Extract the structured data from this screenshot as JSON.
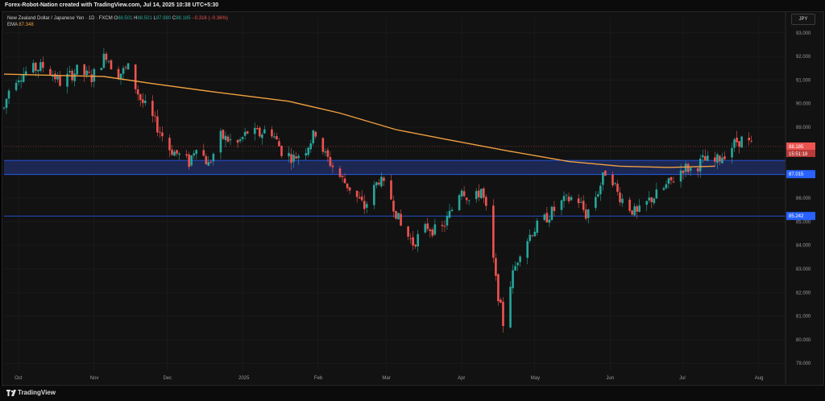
{
  "header": {
    "title": "Forex-Robot-Nation created with TradingView.com, Jul 14, 2025 10:38 UTC+5:30"
  },
  "legend": {
    "symbol": "New Zealand Dollar / Japanese Yen · 1D · FXCM",
    "open_label": "O",
    "open": "88.501",
    "high_label": "H",
    "high": "88.501",
    "low_label": "L",
    "low": "87.980",
    "close_label": "C",
    "close": "88.185",
    "change": "−0.316 (−0.36%)",
    "ema_label": "EMA",
    "ema_value": "87.348"
  },
  "currency_button": "JPY",
  "footer": {
    "brand": "TradingView"
  },
  "colors": {
    "up": "#26a69a",
    "down": "#ef5350",
    "ema": "#f0a040",
    "zone_fill": "#1e2b5e",
    "zone_line": "#2962ff",
    "background": "#121212",
    "grid": "#1f1f1f"
  },
  "chart_data": {
    "type": "candlestick",
    "ylim": [
      78.7,
      93.3
    ],
    "y_ticks": [
      "93.000",
      "92.000",
      "91.000",
      "90.000",
      "89.000",
      "88.000",
      "87.000",
      "86.000",
      "85.000",
      "84.000",
      "83.000",
      "82.000",
      "81.000",
      "80.000",
      "79.000"
    ],
    "x_ticks": [
      "Oct",
      "Nov",
      "Dec",
      "2025",
      "Feb",
      "Mar",
      "Apr",
      "May",
      "Jun",
      "Jul",
      "Aug"
    ],
    "price_labels": {
      "last": "88.185",
      "countdown": "15:51:18",
      "zone_level": "87.015",
      "support_level": "85.242"
    },
    "horizontal_levels": [
      {
        "name": "demand-zone",
        "from": 87.0,
        "to": 87.6
      },
      {
        "name": "support",
        "value": 85.242
      }
    ],
    "ema_series": [
      [
        "2024-09-25",
        91.25
      ],
      [
        "2024-10-15",
        91.2
      ],
      [
        "2024-11-05",
        91.15
      ],
      [
        "2024-11-25",
        90.85
      ],
      [
        "2024-12-20",
        90.5
      ],
      [
        "2025-01-20",
        90.1
      ],
      [
        "2025-02-10",
        89.6
      ],
      [
        "2025-03-05",
        88.9
      ],
      [
        "2025-03-25",
        88.5
      ],
      [
        "2025-04-20",
        88.0
      ],
      [
        "2025-05-15",
        87.55
      ],
      [
        "2025-06-05",
        87.35
      ],
      [
        "2025-06-25",
        87.3
      ],
      [
        "2025-07-14",
        87.35
      ]
    ],
    "price_path": [
      [
        "2024-09-25",
        89.8
      ],
      [
        "2024-09-28",
        91.0
      ],
      [
        "2024-10-05",
        91.4
      ],
      [
        "2024-10-12",
        91.6
      ],
      [
        "2024-10-18",
        90.9
      ],
      [
        "2024-10-25",
        91.4
      ],
      [
        "2024-10-31",
        91.1
      ],
      [
        "2024-11-06",
        92.1
      ],
      [
        "2024-11-10",
        91.2
      ],
      [
        "2024-11-15",
        91.5
      ],
      [
        "2024-11-20",
        90.2
      ],
      [
        "2024-11-26",
        89.2
      ],
      [
        "2024-12-02",
        88.1
      ],
      [
        "2024-12-10",
        87.5
      ],
      [
        "2024-12-13",
        88.3
      ],
      [
        "2024-12-18",
        87.4
      ],
      [
        "2024-12-23",
        88.6
      ],
      [
        "2024-12-30",
        88.3
      ],
      [
        "2025-01-03",
        88.8
      ],
      [
        "2025-01-08",
        88.7
      ],
      [
        "2025-01-12",
        89.0
      ],
      [
        "2025-01-17",
        88.0
      ],
      [
        "2025-01-22",
        87.7
      ],
      [
        "2025-01-27",
        88.1
      ],
      [
        "2025-01-31",
        88.8
      ],
      [
        "2025-02-04",
        87.8
      ],
      [
        "2025-02-10",
        86.9
      ],
      [
        "2025-02-15",
        86.3
      ],
      [
        "2025-02-20",
        85.6
      ],
      [
        "2025-02-26",
        86.8
      ],
      [
        "2025-03-03",
        86.0
      ],
      [
        "2025-03-07",
        84.8
      ],
      [
        "2025-03-12",
        84.1
      ],
      [
        "2025-03-18",
        84.8
      ],
      [
        "2025-03-23",
        84.5
      ],
      [
        "2025-03-27",
        85.3
      ],
      [
        "2025-04-01",
        86.5
      ],
      [
        "2025-04-05",
        85.7
      ],
      [
        "2025-04-09",
        86.4
      ],
      [
        "2025-04-12",
        85.0
      ],
      [
        "2025-04-15",
        82.5
      ],
      [
        "2025-04-18",
        80.7
      ],
      [
        "2025-04-21",
        82.4
      ],
      [
        "2025-04-25",
        83.8
      ],
      [
        "2025-04-30",
        84.6
      ],
      [
        "2025-05-06",
        85.2
      ],
      [
        "2025-05-12",
        85.8
      ],
      [
        "2025-05-18",
        86.1
      ],
      [
        "2025-05-22",
        85.3
      ],
      [
        "2025-05-27",
        86.3
      ],
      [
        "2025-05-31",
        87.4
      ],
      [
        "2025-06-04",
        86.2
      ],
      [
        "2025-06-08",
        85.7
      ],
      [
        "2025-06-12",
        85.3
      ],
      [
        "2025-06-17",
        85.9
      ],
      [
        "2025-06-22",
        86.3
      ],
      [
        "2025-06-27",
        86.8
      ],
      [
        "2025-07-01",
        87.3
      ],
      [
        "2025-07-05",
        87.2
      ],
      [
        "2025-07-09",
        87.6
      ],
      [
        "2025-07-14",
        87.5
      ],
      [
        "2025-07-18",
        87.9
      ],
      [
        "2025-07-21",
        88.2
      ],
      [
        "2025-07-23",
        88.4
      ],
      [
        "2025-07-26",
        88.5
      ],
      [
        "2025-07-29",
        88.2
      ]
    ]
  }
}
